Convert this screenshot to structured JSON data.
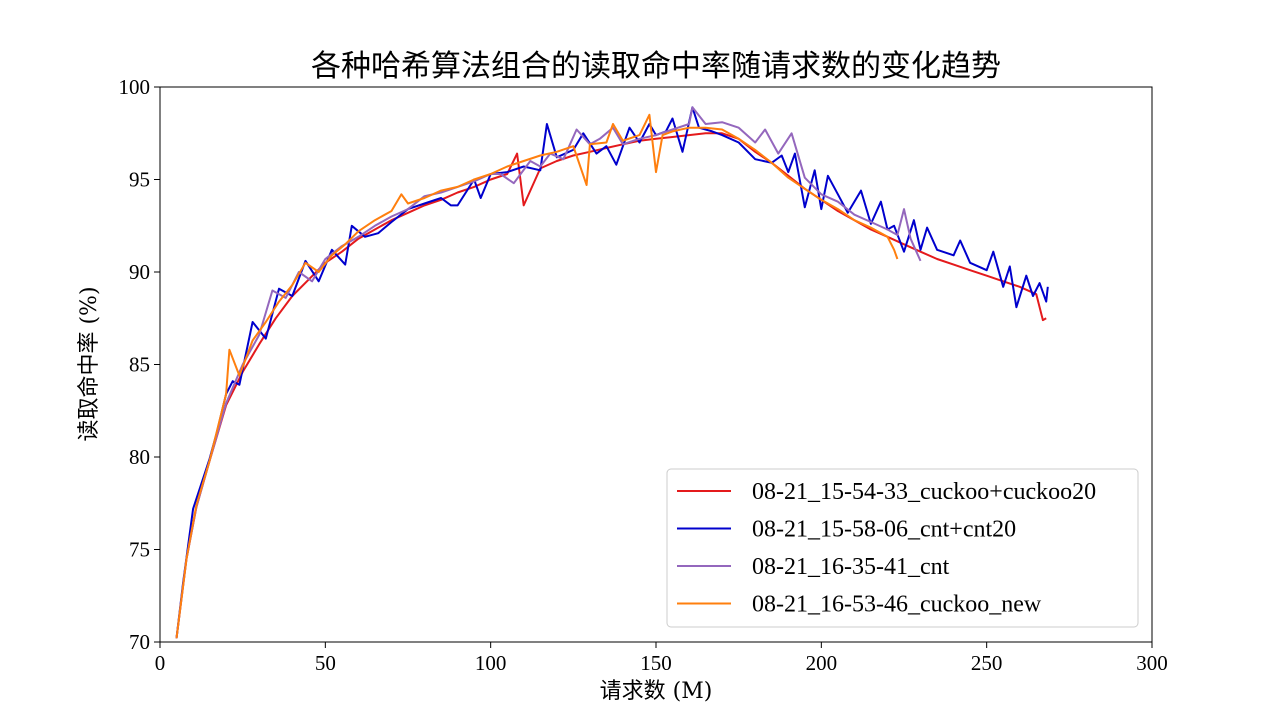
{
  "chart_data": {
    "type": "line",
    "title": "各种哈希算法组合的读取命中率随请求数的变化趋势",
    "xlabel": "请求数 (M)",
    "ylabel": "读取命中率 (%)",
    "xlim": [
      0,
      300
    ],
    "ylim": [
      70,
      100
    ],
    "x_ticks": [
      "0",
      "50",
      "100",
      "150",
      "200",
      "250",
      "300"
    ],
    "y_ticks": [
      "70",
      "75",
      "80",
      "85",
      "90",
      "95",
      "100"
    ],
    "grid": false,
    "legend_position": "lower-right",
    "series": [
      {
        "name": "08-21_15-54-33_cuckoo+cuckoo20",
        "color": "#e41a1c",
        "points": [
          [
            5,
            70.2
          ],
          [
            8,
            74.5
          ],
          [
            11,
            77.3
          ],
          [
            15,
            79.8
          ],
          [
            20,
            82.8
          ],
          [
            25,
            84.6
          ],
          [
            30,
            86.1
          ],
          [
            35,
            87.5
          ],
          [
            40,
            88.7
          ],
          [
            45,
            89.6
          ],
          [
            50,
            90.5
          ],
          [
            55,
            91.1
          ],
          [
            60,
            91.8
          ],
          [
            65,
            92.3
          ],
          [
            70,
            92.8
          ],
          [
            75,
            93.2
          ],
          [
            80,
            93.6
          ],
          [
            85,
            93.9
          ],
          [
            90,
            94.3
          ],
          [
            95,
            94.6
          ],
          [
            100,
            95.0
          ],
          [
            105,
            95.3
          ],
          [
            108,
            96.4
          ],
          [
            110,
            93.6
          ],
          [
            115,
            95.6
          ],
          [
            120,
            96.0
          ],
          [
            125,
            96.3
          ],
          [
            130,
            96.5
          ],
          [
            135,
            96.7
          ],
          [
            140,
            96.9
          ],
          [
            145,
            97.1
          ],
          [
            150,
            97.2
          ],
          [
            155,
            97.3
          ],
          [
            160,
            97.4
          ],
          [
            165,
            97.5
          ],
          [
            170,
            97.5
          ],
          [
            175,
            97.2
          ],
          [
            180,
            96.5
          ],
          [
            185,
            95.9
          ],
          [
            190,
            95.2
          ],
          [
            195,
            94.5
          ],
          [
            200,
            93.9
          ],
          [
            205,
            93.3
          ],
          [
            210,
            92.8
          ],
          [
            215,
            92.3
          ],
          [
            220,
            91.9
          ],
          [
            225,
            91.5
          ],
          [
            230,
            91.1
          ],
          [
            235,
            90.7
          ],
          [
            240,
            90.4
          ],
          [
            245,
            90.1
          ],
          [
            250,
            89.8
          ],
          [
            255,
            89.5
          ],
          [
            260,
            89.2
          ],
          [
            265,
            88.8
          ],
          [
            267,
            87.4
          ],
          [
            268,
            87.5
          ]
        ]
      },
      {
        "name": "08-21_15-58-06_cnt+cnt20",
        "color": "#0000cd",
        "points": [
          [
            5,
            70.2
          ],
          [
            7,
            73.2
          ],
          [
            10,
            77.2
          ],
          [
            15,
            79.9
          ],
          [
            17,
            81.2
          ],
          [
            20,
            83.4
          ],
          [
            22,
            84.1
          ],
          [
            24,
            83.9
          ],
          [
            28,
            87.3
          ],
          [
            32,
            86.4
          ],
          [
            36,
            89.1
          ],
          [
            40,
            88.7
          ],
          [
            44,
            90.6
          ],
          [
            48,
            89.5
          ],
          [
            52,
            91.2
          ],
          [
            56,
            90.4
          ],
          [
            58,
            92.5
          ],
          [
            62,
            91.9
          ],
          [
            66,
            92.1
          ],
          [
            70,
            92.7
          ],
          [
            75,
            93.4
          ],
          [
            80,
            93.7
          ],
          [
            85,
            94.0
          ],
          [
            88,
            93.6
          ],
          [
            90,
            93.6
          ],
          [
            95,
            95.0
          ],
          [
            97,
            94.0
          ],
          [
            100,
            95.3
          ],
          [
            105,
            95.4
          ],
          [
            110,
            95.7
          ],
          [
            115,
            95.5
          ],
          [
            117,
            98.0
          ],
          [
            120,
            96.2
          ],
          [
            125,
            96.6
          ],
          [
            128,
            97.5
          ],
          [
            132,
            96.4
          ],
          [
            135,
            96.8
          ],
          [
            138,
            95.8
          ],
          [
            142,
            97.8
          ],
          [
            145,
            97.0
          ],
          [
            148,
            98.0
          ],
          [
            150,
            97.4
          ],
          [
            153,
            97.6
          ],
          [
            155,
            98.3
          ],
          [
            158,
            96.5
          ],
          [
            161,
            98.9
          ],
          [
            163,
            97.8
          ],
          [
            167,
            97.6
          ],
          [
            170,
            97.4
          ],
          [
            175,
            97.0
          ],
          [
            180,
            96.1
          ],
          [
            185,
            95.9
          ],
          [
            188,
            96.3
          ],
          [
            190,
            95.4
          ],
          [
            192,
            96.4
          ],
          [
            195,
            93.5
          ],
          [
            198,
            95.5
          ],
          [
            200,
            93.4
          ],
          [
            202,
            95.2
          ],
          [
            205,
            94.2
          ],
          [
            208,
            93.2
          ],
          [
            212,
            94.4
          ],
          [
            215,
            92.6
          ],
          [
            218,
            93.8
          ],
          [
            220,
            92.3
          ],
          [
            222,
            92.5
          ],
          [
            225,
            91.1
          ],
          [
            228,
            92.8
          ],
          [
            230,
            91.2
          ],
          [
            232,
            92.4
          ],
          [
            235,
            91.2
          ],
          [
            240,
            90.9
          ],
          [
            242,
            91.7
          ],
          [
            245,
            90.5
          ],
          [
            250,
            90.1
          ],
          [
            252,
            91.1
          ],
          [
            255,
            89.2
          ],
          [
            257,
            90.3
          ],
          [
            259,
            88.1
          ],
          [
            262,
            89.8
          ],
          [
            264,
            88.7
          ],
          [
            266,
            89.4
          ],
          [
            268,
            88.4
          ],
          [
            268.5,
            89.2
          ]
        ]
      },
      {
        "name": "08-21_16-35-41_cnt",
        "color": "#9467bd",
        "points": [
          [
            5,
            70.2
          ],
          [
            8,
            74.5
          ],
          [
            11,
            77.3
          ],
          [
            15,
            79.8
          ],
          [
            20,
            82.9
          ],
          [
            25,
            85.0
          ],
          [
            30,
            86.6
          ],
          [
            34,
            89.0
          ],
          [
            38,
            88.6
          ],
          [
            42,
            90.0
          ],
          [
            46,
            89.5
          ],
          [
            50,
            90.7
          ],
          [
            55,
            91.4
          ],
          [
            60,
            91.9
          ],
          [
            65,
            92.5
          ],
          [
            70,
            93.0
          ],
          [
            75,
            93.4
          ],
          [
            80,
            94.1
          ],
          [
            85,
            94.3
          ],
          [
            90,
            94.6
          ],
          [
            95,
            94.9
          ],
          [
            100,
            95.3
          ],
          [
            103,
            95.3
          ],
          [
            107,
            94.8
          ],
          [
            112,
            96.0
          ],
          [
            115,
            95.7
          ],
          [
            118,
            96.4
          ],
          [
            122,
            96.1
          ],
          [
            126,
            97.7
          ],
          [
            130,
            96.9
          ],
          [
            133,
            97.2
          ],
          [
            137,
            97.8
          ],
          [
            140,
            96.9
          ],
          [
            145,
            97.2
          ],
          [
            150,
            97.4
          ],
          [
            155,
            97.7
          ],
          [
            160,
            98.0
          ],
          [
            161,
            98.9
          ],
          [
            165,
            98.0
          ],
          [
            170,
            98.1
          ],
          [
            175,
            97.8
          ],
          [
            180,
            97.0
          ],
          [
            183,
            97.7
          ],
          [
            187,
            96.4
          ],
          [
            191,
            97.5
          ],
          [
            195,
            95.1
          ],
          [
            200,
            94.2
          ],
          [
            205,
            93.8
          ],
          [
            210,
            93.1
          ],
          [
            215,
            92.7
          ],
          [
            220,
            92.3
          ],
          [
            223,
            92.0
          ],
          [
            225,
            93.4
          ],
          [
            227,
            91.8
          ],
          [
            230,
            90.6
          ]
        ]
      },
      {
        "name": "08-21_16-53-46_cuckoo_new",
        "color": "#ff7f0e",
        "points": [
          [
            5,
            70.2
          ],
          [
            8,
            74.5
          ],
          [
            11,
            77.4
          ],
          [
            15,
            79.8
          ],
          [
            20,
            83.4
          ],
          [
            21,
            85.8
          ],
          [
            24,
            84.4
          ],
          [
            28,
            86.3
          ],
          [
            32,
            87.3
          ],
          [
            36,
            88.4
          ],
          [
            40,
            89.3
          ],
          [
            44,
            90.5
          ],
          [
            48,
            90.0
          ],
          [
            52,
            90.9
          ],
          [
            56,
            91.5
          ],
          [
            60,
            92.2
          ],
          [
            65,
            92.8
          ],
          [
            70,
            93.3
          ],
          [
            73,
            94.2
          ],
          [
            75,
            93.7
          ],
          [
            80,
            94.0
          ],
          [
            85,
            94.4
          ],
          [
            90,
            94.6
          ],
          [
            95,
            95.0
          ],
          [
            100,
            95.3
          ],
          [
            105,
            95.7
          ],
          [
            110,
            96.0
          ],
          [
            115,
            96.3
          ],
          [
            120,
            96.5
          ],
          [
            125,
            96.8
          ],
          [
            129,
            94.7
          ],
          [
            130,
            96.9
          ],
          [
            135,
            97.0
          ],
          [
            137,
            98.0
          ],
          [
            140,
            97.1
          ],
          [
            145,
            97.4
          ],
          [
            148,
            98.5
          ],
          [
            150,
            95.4
          ],
          [
            152,
            97.4
          ],
          [
            155,
            97.6
          ],
          [
            160,
            97.8
          ],
          [
            165,
            97.8
          ],
          [
            170,
            97.7
          ],
          [
            175,
            97.2
          ],
          [
            180,
            96.6
          ],
          [
            185,
            95.9
          ],
          [
            190,
            95.1
          ],
          [
            195,
            94.5
          ],
          [
            200,
            93.9
          ],
          [
            205,
            93.4
          ],
          [
            210,
            92.8
          ],
          [
            215,
            92.4
          ],
          [
            220,
            91.9
          ],
          [
            222,
            91.2
          ],
          [
            223,
            90.7
          ]
        ]
      }
    ]
  }
}
